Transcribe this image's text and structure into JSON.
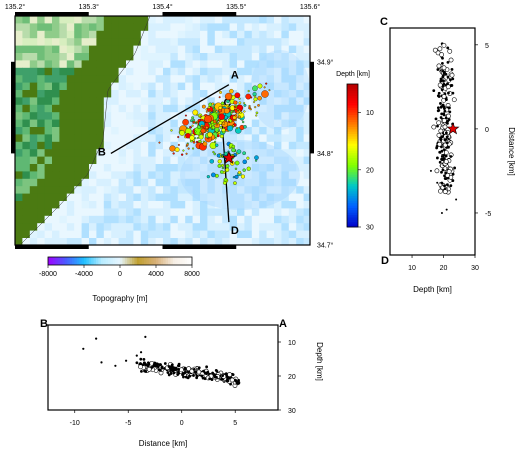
{
  "chart_data": [
    {
      "type": "scatter",
      "kind": "map",
      "x_ticks": [
        "135.2°",
        "135.3°",
        "135.4°",
        "135.5°",
        "135.6°"
      ],
      "y_ticks": [
        "34.9°",
        "34.8°",
        "34.7°"
      ],
      "xlim": [
        135.2,
        135.6
      ],
      "ylim": [
        34.7,
        34.95
      ],
      "profile_lines": [
        {
          "start_label": "A",
          "end_label": "B",
          "start": [
            135.49,
            34.875
          ],
          "end": [
            135.33,
            34.8
          ]
        },
        {
          "start_label": "C",
          "end_label": "D",
          "start": [
            135.48,
            34.845
          ],
          "end": [
            135.49,
            34.725
          ]
        }
      ],
      "mainshock": {
        "lon": 135.49,
        "lat": 34.795,
        "depth_km": 23
      },
      "cluster": {
        "lon_range": [
          135.36,
          135.56
        ],
        "lat_range": [
          34.77,
          34.89
        ],
        "depth_range_km": [
          10,
          25
        ]
      },
      "colorbar_depth": {
        "label": "Depth [km]",
        "ticks": [
          10,
          20,
          30
        ],
        "range": [
          5,
          30
        ],
        "colors": [
          "#b40000",
          "#ff0000",
          "#ff8000",
          "#ffff00",
          "#80ff00",
          "#00c8c8",
          "#0060ff",
          "#0000c8"
        ]
      },
      "colorbar_topo": {
        "label": "Topography [m]",
        "ticks": [
          -8000,
          -4000,
          0,
          4000,
          8000
        ],
        "range": [
          -8000,
          8000
        ],
        "colors": [
          "#9f00ff",
          "#4a5cff",
          "#20c0ff",
          "#b8ecff",
          "#e6f6ff",
          "#c0a030",
          "#d8b078",
          "#f6eee4",
          "#ffffff"
        ]
      }
    },
    {
      "type": "scatter",
      "kind": "cross-section C-D",
      "xlabel": "Depth [km]",
      "ylabel": "Distance [km]",
      "x_ticks": [
        10,
        20,
        30
      ],
      "y_ticks": [
        5,
        0,
        -5
      ],
      "xlim": [
        3,
        30
      ],
      "ylim": [
        -7.5,
        6
      ],
      "corner_labels": [
        "C",
        "D"
      ],
      "mainshock": {
        "depth": 23,
        "distance": 0
      }
    },
    {
      "type": "scatter",
      "kind": "cross-section B-A",
      "xlabel": "Distance [km]",
      "ylabel": "Depth [km]",
      "x_ticks": [
        -10,
        -5,
        0,
        5
      ],
      "y_ticks": [
        10,
        20,
        30
      ],
      "xlim": [
        -12.5,
        9
      ],
      "ylim": [
        5,
        30
      ],
      "corner_labels": [
        "B",
        "A"
      ],
      "shallow_events": [
        [
          -9.2,
          12
        ],
        [
          -8,
          9
        ],
        [
          -7.5,
          16
        ],
        [
          -6.2,
          17
        ],
        [
          -5.2,
          15.5
        ],
        [
          -3.4,
          8.5
        ],
        [
          -3.8,
          13
        ],
        [
          -4.2,
          14
        ]
      ]
    }
  ]
}
